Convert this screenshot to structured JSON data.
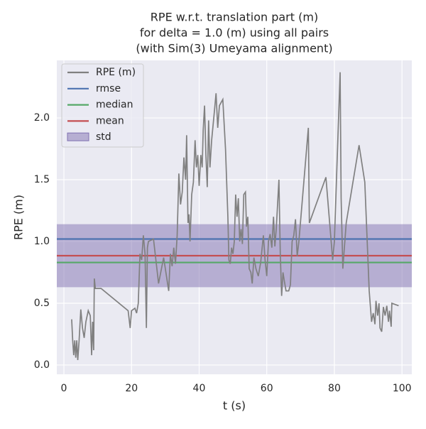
{
  "chart_data": {
    "type": "line",
    "title": [
      "RPE w.r.t. translation part (m)",
      "for delta = 1.0 (m) using all pairs",
      "(with Sim(3) Umeyama alignment)"
    ],
    "xlabel": "t (s)",
    "ylabel": "RPE (m)",
    "xlim": [
      -2.1,
      102.9
    ],
    "ylim": [
      -0.075,
      2.466
    ],
    "xticks": [
      0,
      20,
      40,
      60,
      80,
      100
    ],
    "yticks": [
      {
        "value": 0,
        "label": "0.0"
      },
      0.5,
      {
        "value": 1,
        "label": "1.0"
      },
      1.5,
      {
        "value": 2,
        "label": "2.0"
      }
    ],
    "grid": true,
    "legend": "upper left",
    "series": [
      {
        "name": "RPE (m)",
        "color": "#808080",
        "x": [
          2.3,
          2.6,
          2.9,
          3.2,
          3.5,
          3.8,
          4.1,
          4.5,
          5,
          5.5,
          6,
          6.5,
          7.2,
          7.8,
          8.2,
          8.5,
          8.8,
          9,
          9.3,
          11,
          19,
          19.6,
          20,
          21,
          21.5,
          22,
          22.5,
          23,
          23.5,
          24,
          24.4,
          24.7,
          25,
          26.5,
          28,
          29.5,
          31,
          31.5,
          32,
          32.5,
          33,
          33.5,
          34,
          34.5,
          35,
          35.5,
          36,
          36.3,
          36.7,
          37,
          37.3,
          37.8,
          38.3,
          38.8,
          39.2,
          39.6,
          40,
          40.5,
          40.9,
          41.2,
          41.6,
          42,
          42.4,
          42.8,
          43.2,
          43.7,
          44.5,
          45,
          45.5,
          46,
          47,
          47.8,
          48.5,
          48.8,
          49.2,
          49.6,
          50,
          50.4,
          50.8,
          51.2,
          51.6,
          52,
          52.4,
          52.8,
          53.2,
          53.7,
          54,
          54.4,
          54.8,
          55.3,
          55.7,
          56.2,
          56.8,
          57.5,
          58.2,
          59,
          59.5,
          60,
          60.5,
          61,
          61.5,
          62,
          62.4,
          62.8,
          63.2,
          63.6,
          64,
          64.4,
          64.8,
          65.2,
          65.7,
          66.5,
          67,
          67.5,
          68,
          68.5,
          69,
          69.5,
          72.3,
          72.6,
          77.5,
          79.5,
          80,
          81.7,
          82,
          82.5,
          83.5,
          87.3,
          89,
          90.3,
          91,
          91.5,
          92,
          92.3,
          92.8,
          93.2,
          93.5,
          94,
          94.5,
          95,
          95.5,
          96,
          96.3,
          96.8,
          97,
          99
        ],
        "values": [
          0.37,
          0.2,
          0.08,
          0.2,
          0.06,
          0.2,
          0.04,
          0.2,
          0.45,
          0.3,
          0.22,
          0.35,
          0.44,
          0.4,
          0.08,
          0.35,
          0.12,
          0.7,
          0.62,
          0.62,
          0.44,
          0.3,
          0.44,
          0.46,
          0.42,
          0.5,
          0.9,
          0.85,
          1.05,
          0.9,
          0.3,
          0.95,
          1.0,
          1.02,
          0.66,
          0.87,
          0.6,
          0.9,
          0.8,
          0.95,
          0.82,
          1.05,
          1.55,
          1.3,
          1.4,
          1.68,
          1.5,
          1.86,
          1.15,
          1.22,
          1.0,
          1.38,
          1.48,
          1.82,
          1.6,
          1.7,
          1.45,
          1.7,
          1.6,
          1.9,
          2.1,
          1.7,
          1.44,
          1.98,
          1.6,
          1.82,
          2.05,
          2.2,
          1.92,
          2.1,
          2.15,
          1.75,
          1.2,
          0.85,
          0.82,
          0.95,
          0.9,
          1.0,
          1.38,
          1.2,
          1.35,
          1.0,
          1.1,
          0.98,
          1.38,
          1.4,
          1.12,
          1.2,
          0.78,
          0.75,
          0.66,
          0.87,
          0.78,
          0.72,
          0.83,
          1.05,
          0.85,
          0.72,
          1.0,
          1.06,
          0.95,
          1.2,
          0.96,
          1.1,
          1.3,
          1.5,
          0.9,
          0.56,
          0.75,
          0.68,
          0.6,
          0.6,
          0.65,
          1.0,
          1.05,
          1.18,
          0.88,
          1.0,
          1.92,
          1.15,
          1.52,
          0.85,
          1.0,
          2.37,
          1.35,
          0.78,
          1.15,
          1.78,
          1.48,
          0.6,
          0.35,
          0.42,
          0.33,
          0.52,
          0.4,
          0.5,
          0.3,
          0.27,
          0.47,
          0.4,
          0.48,
          0.35,
          0.44,
          0.31,
          0.5,
          0.48
        ]
      },
      {
        "name": "rmse",
        "color": "#4c72b0",
        "value": 1.02
      },
      {
        "name": "median",
        "color": "#55a868",
        "value": 0.83
      },
      {
        "name": "mean",
        "color": "#c44e52",
        "value": 0.885
      },
      {
        "name": "std",
        "color": "#8172b2",
        "value": 0.255
      }
    ]
  }
}
